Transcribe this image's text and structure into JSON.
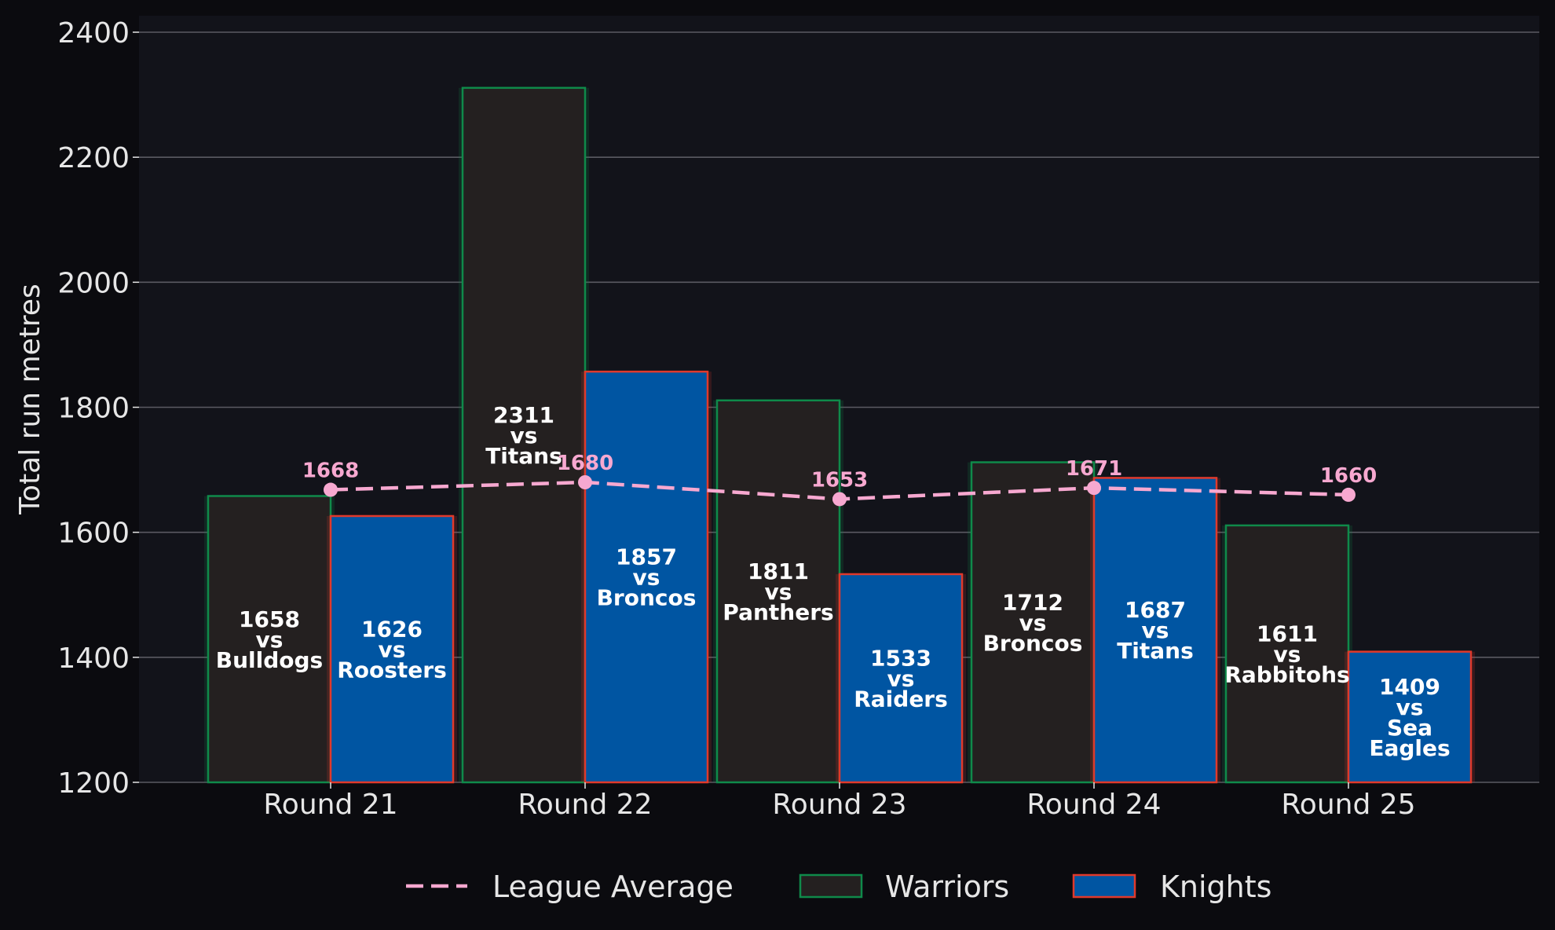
{
  "chart_data": {
    "type": "bar",
    "title": "",
    "xlabel": "",
    "ylabel": "Total run metres",
    "ylim": [
      1200,
      2430
    ],
    "yticks": [
      1200,
      1400,
      1600,
      1800,
      2000,
      2200,
      2400
    ],
    "categories": [
      "Round 21",
      "Round 22",
      "Round 23",
      "Round 24",
      "Round 25"
    ],
    "grid": "horizontal",
    "legend_position": "bottom-center",
    "series": [
      {
        "name": "Warriors",
        "kind": "bar",
        "fill": "#242020",
        "edge": "#0f8a4a",
        "values": [
          1658,
          2311,
          1811,
          1712,
          1611
        ],
        "opponents": [
          "Bulldogs",
          "Titans",
          "Panthers",
          "Broncos",
          "Rabbitohs"
        ]
      },
      {
        "name": "Knights",
        "kind": "bar",
        "fill": "#0055a2",
        "edge": "#e0392b",
        "values": [
          1626,
          1857,
          1533,
          1687,
          1409
        ],
        "opponents": [
          "Roosters",
          "Broncos",
          "Raiders",
          "Titans",
          "Sea Eagles"
        ]
      },
      {
        "name": "League Average",
        "kind": "line",
        "style": "dashed",
        "color": "#f7a8d0",
        "values": [
          1668,
          1680,
          1653,
          1671,
          1660
        ]
      }
    ],
    "vs_word": "vs"
  },
  "colors": {
    "page_bg": "#0b0b0f",
    "plot_bg": "#12131a",
    "grid": "#5a5a62",
    "text": "#e6e6e6"
  }
}
